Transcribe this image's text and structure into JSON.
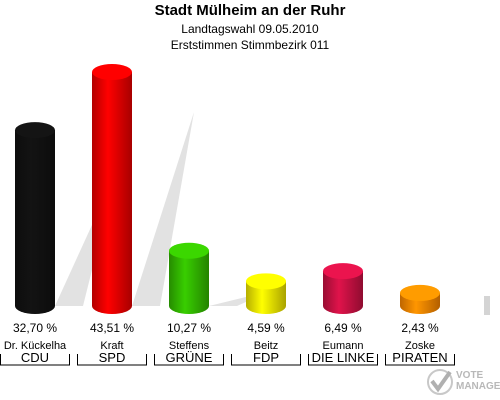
{
  "header": {
    "title": "Stadt Mülheim an der Ruhr",
    "subtitle1": "Landtagswahl 09.05.2010",
    "subtitle2": "Erststimmen Stimmbezirk 011"
  },
  "chart_data": {
    "type": "bar",
    "title": "Stadt Mülheim an der Ruhr",
    "subtitle": "Landtagswahl 09.05.2010 — Erststimmen Stimmbezirk 011",
    "categories": [
      "CDU",
      "SPD",
      "GRÜNE",
      "FDP",
      "DIE LINKE",
      "PIRATEN"
    ],
    "candidates": [
      "Dr. Kückelha",
      "Kraft",
      "Steffens",
      "Beitz",
      "Eumann",
      "Zoske"
    ],
    "values": [
      32.7,
      43.51,
      10.27,
      4.59,
      6.49,
      2.43
    ],
    "value_labels": [
      "32,70 %",
      "43,51 %",
      "10,27 %",
      "4,59 %",
      "6,49 %",
      "2,43 %"
    ],
    "colors": [
      "#111111",
      "#ee0000",
      "#33bb00",
      "#f2e800",
      "#cc1144",
      "#ff8800"
    ],
    "ylim": [
      0,
      43.51
    ],
    "grid": false,
    "legend": "none"
  },
  "logo": {
    "line1": "VOTE",
    "line2": "MANAGER"
  }
}
